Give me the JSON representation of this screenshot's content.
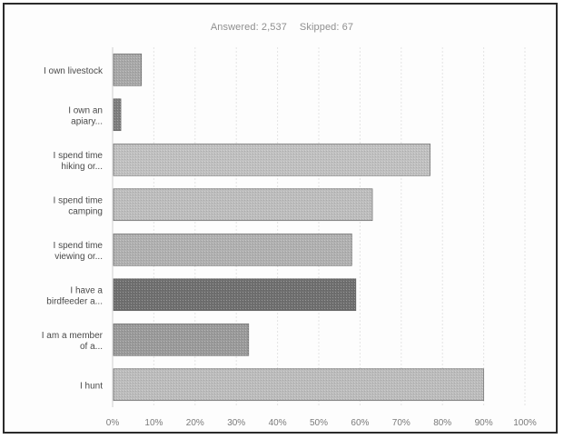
{
  "header": {
    "answered": "Answered: 2,537",
    "skipped": "Skipped: 67"
  },
  "chart_data": {
    "type": "bar",
    "orientation": "horizontal",
    "categories": [
      "I own livestock",
      "I own an apiary...",
      "I spend time hiking or...",
      "I spend time camping",
      "I spend time viewing or...",
      "I have a birdfeeder a...",
      "I am a member of a...",
      "I hunt"
    ],
    "values": [
      7,
      2,
      77,
      63,
      58,
      59,
      33,
      90
    ],
    "xticks": [
      "0%",
      "10%",
      "20%",
      "30%",
      "40%",
      "50%",
      "60%",
      "70%",
      "80%",
      "90%",
      "100%"
    ],
    "xlim": [
      0,
      100
    ],
    "grid": true,
    "bar_colors": [
      "#a8a8a8",
      "#7e7e7e",
      "#c0c0c0",
      "#bdbdbd",
      "#b0b0b0",
      "#6f6f6f",
      "#9a9a9a",
      "#bcbcbc"
    ]
  }
}
